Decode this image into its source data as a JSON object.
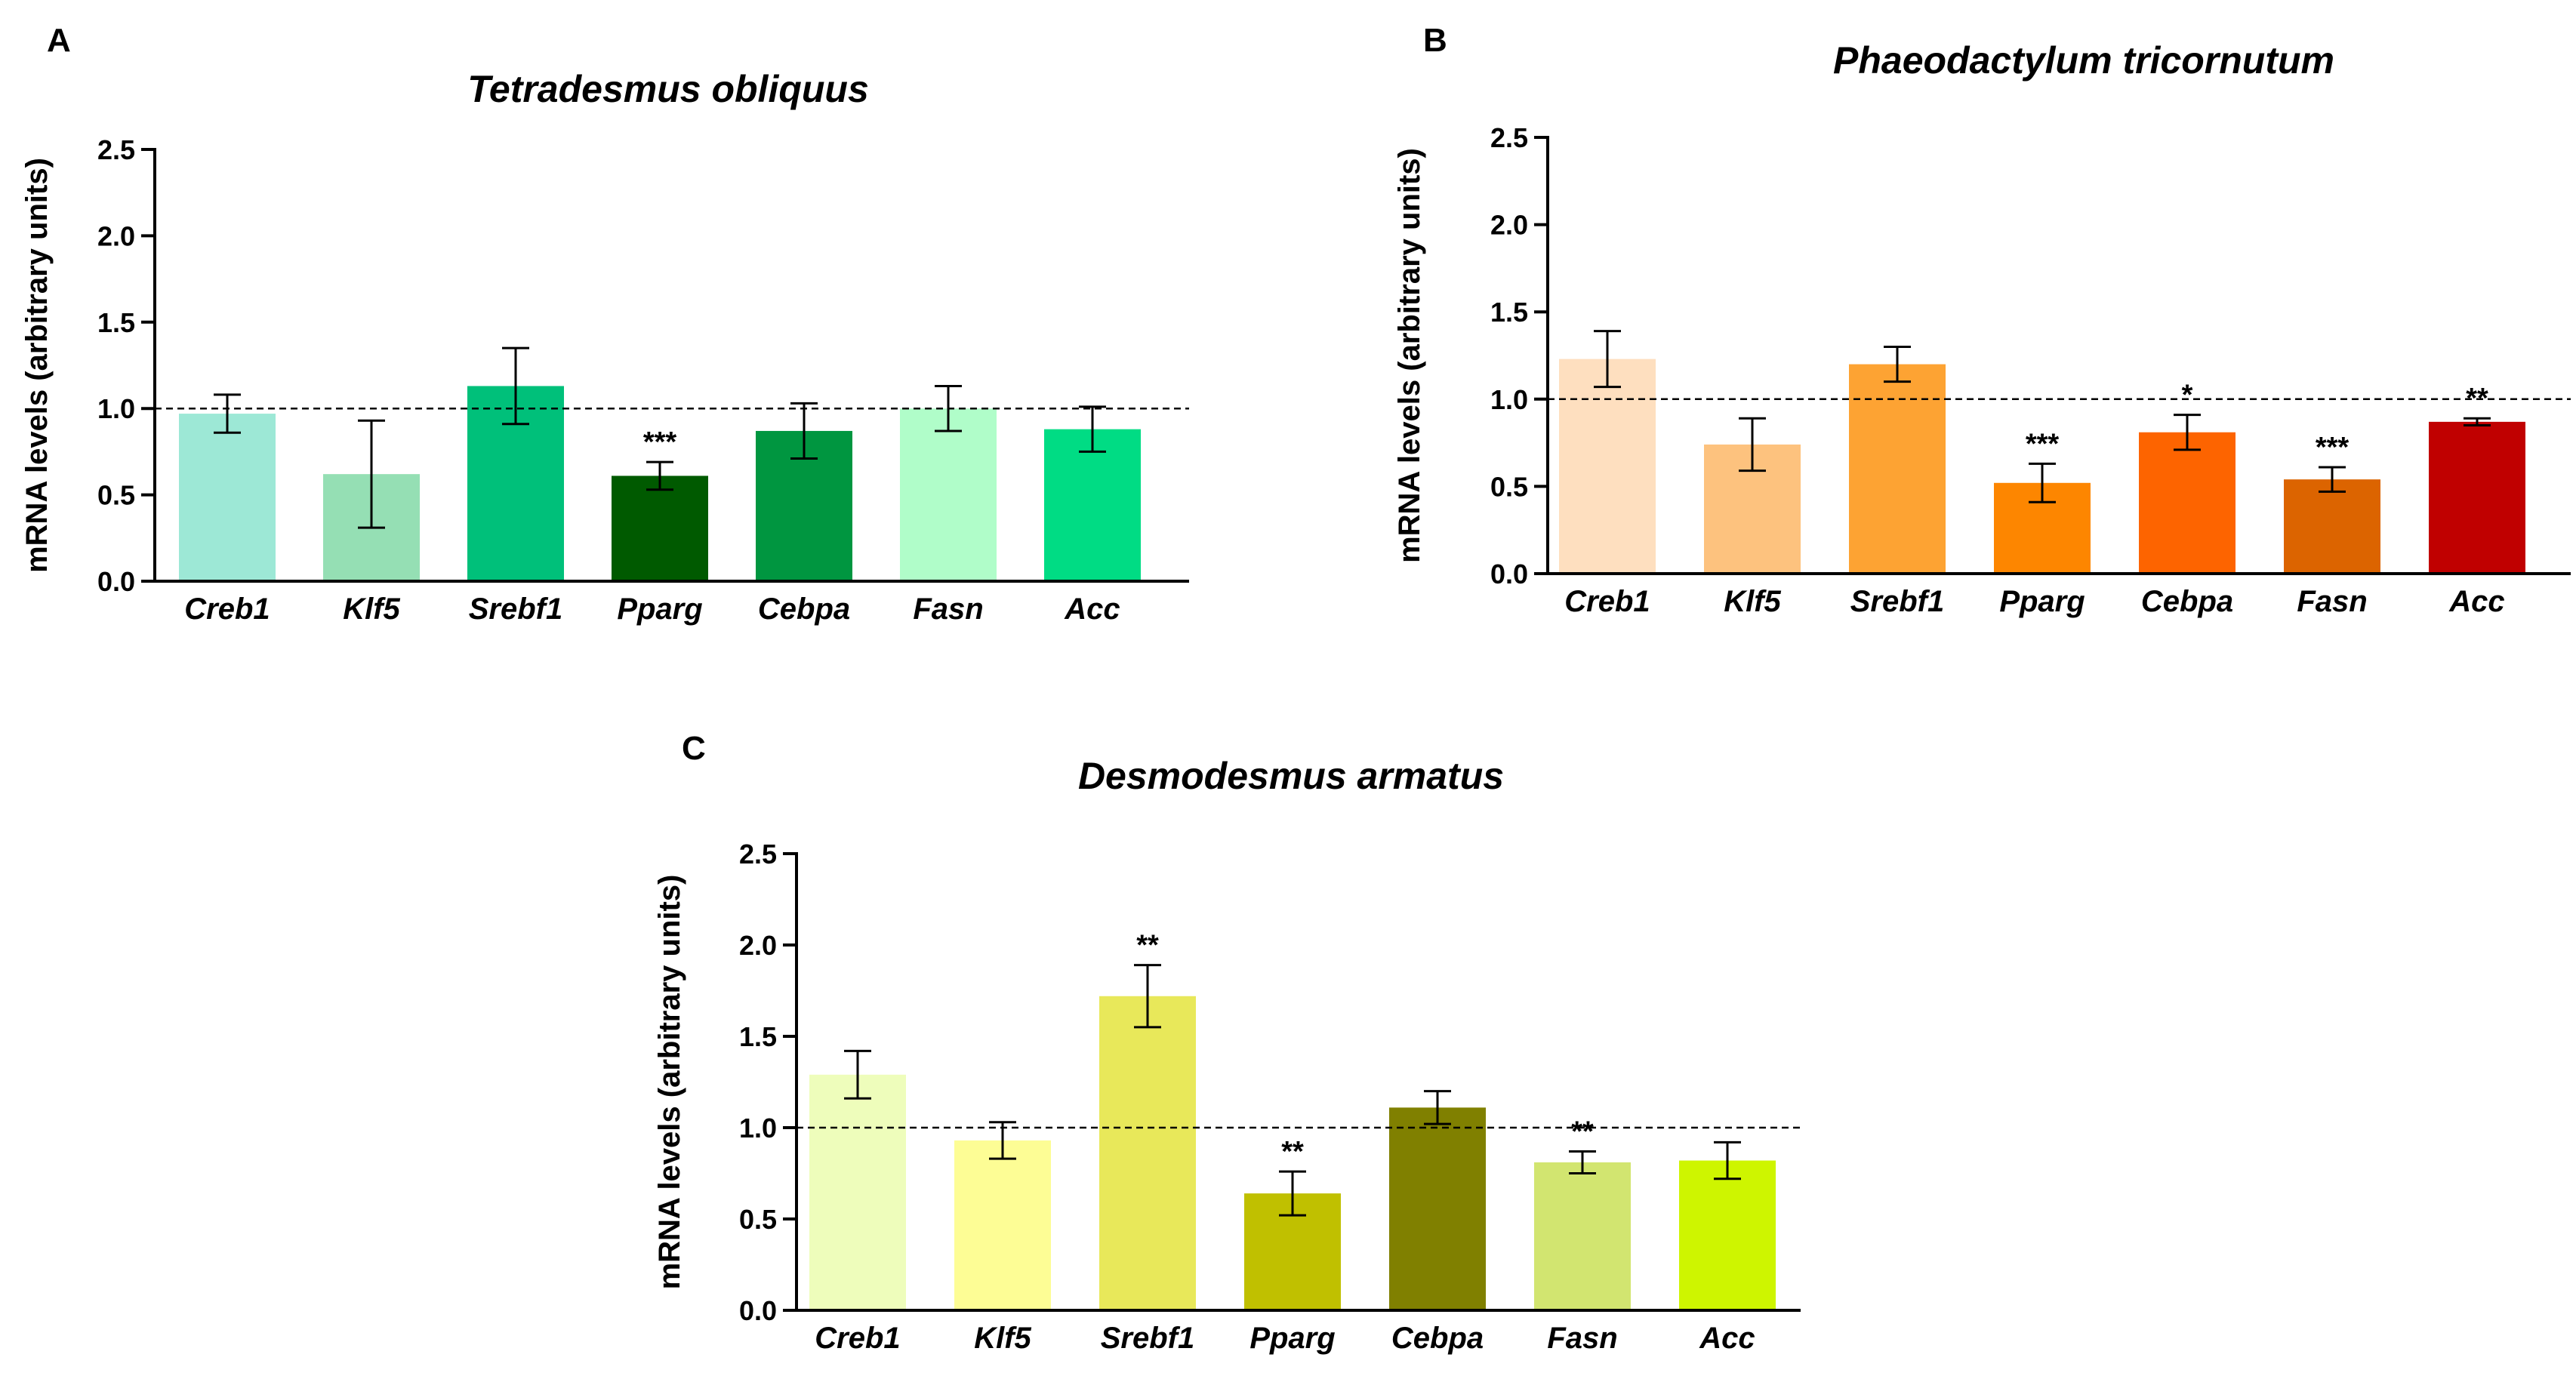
{
  "chart_data": [
    {
      "panel": "A",
      "type": "bar",
      "title": "Tetradesmus obliquus",
      "ylabel": "mRNA levels (arbitrary units)",
      "xlabel": "",
      "ylim": [
        0,
        2.5
      ],
      "yticks": [
        "0.0",
        "0.5",
        "1.0",
        "1.5",
        "2.0",
        "2.5"
      ],
      "reference_line": 1.0,
      "categories": [
        "Creb1",
        "Klf5",
        "Srebf1",
        "Pparg",
        "Cebpa",
        "Fasn",
        "Acc"
      ],
      "values": [
        0.97,
        0.62,
        1.13,
        0.61,
        0.87,
        1.0,
        0.88
      ],
      "errors": [
        0.11,
        0.31,
        0.22,
        0.08,
        0.16,
        0.13,
        0.13
      ],
      "significance": [
        "",
        "",
        "",
        "***",
        "",
        "",
        ""
      ],
      "colors": [
        "#9de8d6",
        "#95dfb4",
        "#00c07a",
        "#005a00",
        "#009640",
        "#b0fdc9",
        "#00dc84"
      ]
    },
    {
      "panel": "B",
      "type": "bar",
      "title": "Phaeodactylum tricornutum",
      "ylabel": "mRNA levels (arbitrary units)",
      "xlabel": "",
      "ylim": [
        0,
        2.5
      ],
      "yticks": [
        "0.0",
        "0.5",
        "1.0",
        "1.5",
        "2.0",
        "2.5"
      ],
      "reference_line": 1.0,
      "categories": [
        "Creb1",
        "Klf5",
        "Srebf1",
        "Pparg",
        "Cebpa",
        "Fasn",
        "Acc"
      ],
      "values": [
        1.23,
        0.74,
        1.2,
        0.52,
        0.81,
        0.54,
        0.87
      ],
      "errors": [
        0.16,
        0.15,
        0.1,
        0.11,
        0.1,
        0.07,
        0.02
      ],
      "significance": [
        "",
        "",
        "",
        "***",
        "*",
        "***",
        "**"
      ],
      "colors": [
        "#fedfbf",
        "#fdc27e",
        "#fda333",
        "#fd8600",
        "#fd6400",
        "#dc6400",
        "#c00000"
      ]
    },
    {
      "panel": "C",
      "type": "bar",
      "title": "Desmodesmus armatus",
      "ylabel": "mRNA levels (arbitrary units)",
      "xlabel": "",
      "ylim": [
        0,
        2.5
      ],
      "yticks": [
        "0.0",
        "0.5",
        "1.0",
        "1.5",
        "2.0",
        "2.5"
      ],
      "reference_line": 1.0,
      "categories": [
        "Creb1",
        "Klf5",
        "Srebf1",
        "Pparg",
        "Cebpa",
        "Fasn",
        "Acc"
      ],
      "values": [
        1.29,
        0.93,
        1.72,
        0.64,
        1.11,
        0.81,
        0.82
      ],
      "errors": [
        0.13,
        0.1,
        0.17,
        0.12,
        0.09,
        0.06,
        0.1
      ],
      "significance": [
        "",
        "",
        "**",
        "**",
        "",
        "**",
        ""
      ],
      "colors": [
        "#eefdbb",
        "#fdfd95",
        "#e8e85a",
        "#c0c000",
        "#808000",
        "#d2e570",
        "#cef500"
      ]
    }
  ]
}
